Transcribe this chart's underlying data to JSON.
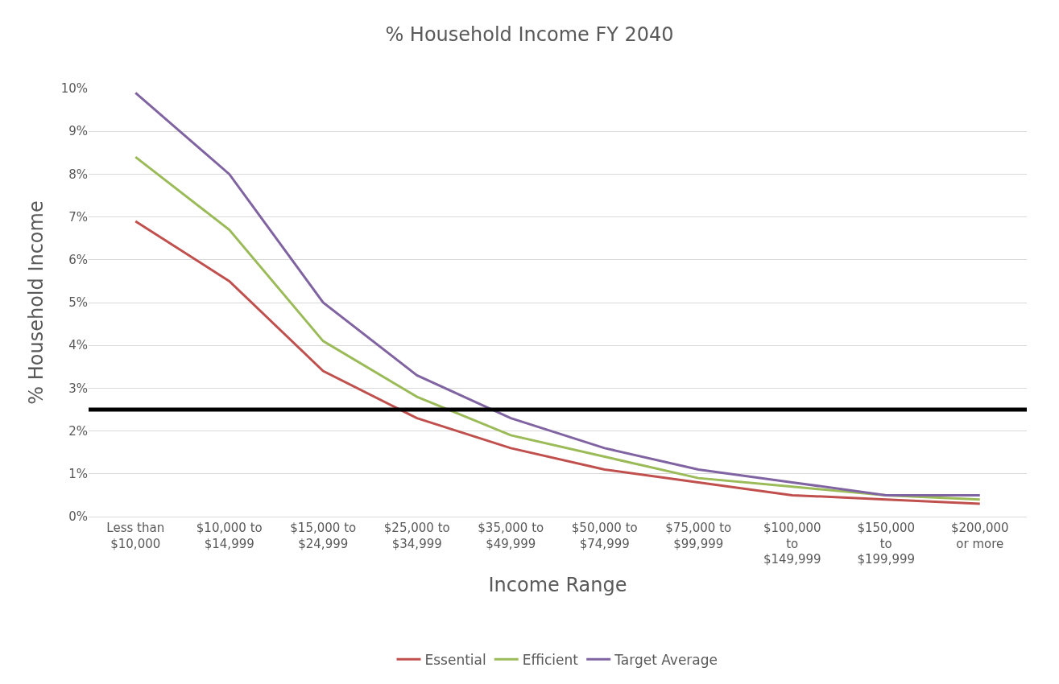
{
  "chart_data": {
    "type": "line",
    "title": "% Household Income FY 2040",
    "xlabel": "Income Range",
    "ylabel": "% Household Income",
    "categories": [
      "Less than\n$10,000",
      "$10,000 to\n$14,999",
      "$15,000 to\n$24,999",
      "$25,000 to\n$34,999",
      "$35,000 to\n$49,999",
      "$50,000 to\n$74,999",
      "$75,000 to\n$99,999",
      "$100,000\nto\n$149,999",
      "$150,000\nto\n$199,999",
      "$200,000\nor more"
    ],
    "series": [
      {
        "name": "Essential",
        "color": "#c0504d",
        "values": [
          6.9,
          5.5,
          3.4,
          2.3,
          1.6,
          1.1,
          0.8,
          0.5,
          0.4,
          0.3
        ]
      },
      {
        "name": "Efficient",
        "color": "#9bbb59",
        "values": [
          8.4,
          6.7,
          4.1,
          2.8,
          1.9,
          1.4,
          0.9,
          0.7,
          0.5,
          0.4
        ]
      },
      {
        "name": "Target Average",
        "color": "#8064a2",
        "values": [
          9.9,
          8.0,
          5.0,
          3.3,
          2.3,
          1.6,
          1.1,
          0.8,
          0.5,
          0.5
        ]
      }
    ],
    "ylim": [
      0,
      10
    ],
    "yticks": [
      {
        "value": 0,
        "label": "0%"
      },
      {
        "value": 1,
        "label": "1%"
      },
      {
        "value": 2,
        "label": "2%"
      },
      {
        "value": 3,
        "label": "3%"
      },
      {
        "value": 4,
        "label": "4%"
      },
      {
        "value": 5,
        "label": "5%"
      },
      {
        "value": 6,
        "label": "6%"
      },
      {
        "value": 7,
        "label": "7%"
      },
      {
        "value": 8,
        "label": "8%"
      },
      {
        "value": 9,
        "label": "9%"
      },
      {
        "value": 10,
        "label": "10%"
      }
    ],
    "ref_lines": [
      {
        "axis": "y",
        "value": 2.5,
        "color": "#000000"
      }
    ],
    "grid": "y",
    "legend": "bottom",
    "marker": "none",
    "line_style": "solid"
  }
}
